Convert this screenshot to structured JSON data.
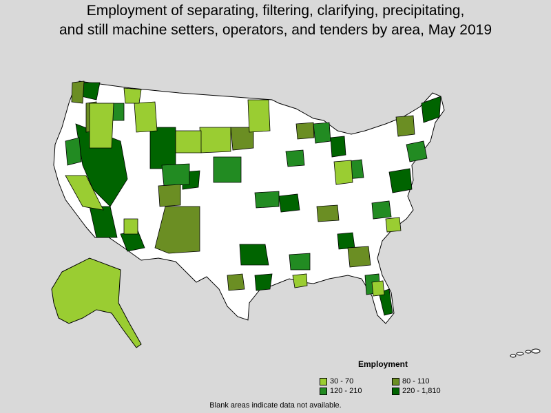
{
  "title": {
    "line1": "Employment of separating, filtering, clarifying, precipitating,",
    "line2": "and still machine setters, operators, and tenders by area, May 2019"
  },
  "legend": {
    "title": "Employment",
    "items": [
      {
        "label": "30 - 70",
        "color": "#9acd32"
      },
      {
        "label": "80 - 110",
        "color": "#6b8e23"
      },
      {
        "label": "120 - 210",
        "color": "#228b22"
      },
      {
        "label": "220 - 1,810",
        "color": "#006400"
      }
    ]
  },
  "footnote": "Blank areas indicate data not available.",
  "colors": {
    "background": "#d9d9d9",
    "no_data": "#ffffff",
    "border": "#000000"
  }
}
